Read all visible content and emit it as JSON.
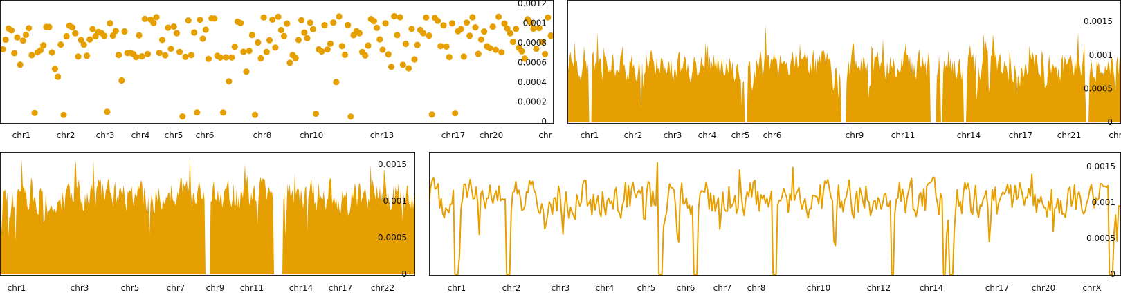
{
  "colors": {
    "series": "#E69F00",
    "frame": "#222222",
    "text": "#111111",
    "background": "#ffffff"
  },
  "chart_data": [
    {
      "id": "top-left",
      "type": "scatter",
      "ylim": [
        0,
        0.0012
      ],
      "y_ticks": [
        "0",
        "0.0002",
        "0.0004",
        "0.0006",
        "0.0008",
        "0.001",
        "0.0012"
      ],
      "x_labels": [
        "chr1",
        "chr2",
        "chr3",
        "chr4",
        "chr5",
        "chr6",
        "chr8",
        "chr10",
        "chr13",
        "chr17",
        "chr20",
        "chr"
      ],
      "y_axis_side": "right",
      "grid": false
    },
    {
      "id": "top-right",
      "type": "area",
      "ylim": [
        0,
        0.0018
      ],
      "y_ticks": [
        "0",
        "0.0005",
        "0.001",
        "0.0015"
      ],
      "x_labels": [
        "chr1",
        "chr2",
        "chr3",
        "chr4",
        "chr5",
        "chr6",
        "chr9",
        "chr11",
        "chr14",
        "chr17",
        "chr21",
        "chr"
      ],
      "y_axis_side": "right",
      "grid": false
    },
    {
      "id": "bottom-left",
      "type": "area",
      "ylim": [
        0,
        0.00165
      ],
      "y_ticks": [
        "0",
        "0.0005",
        "0.001",
        "0.0015"
      ],
      "x_labels": [
        "chr1",
        "chr3",
        "chr5",
        "chr7",
        "chr9",
        "chr11",
        "chr14",
        "chr17",
        "chr22"
      ],
      "y_axis_side": "right",
      "grid": false
    },
    {
      "id": "bottom-right",
      "type": "line",
      "ylim": [
        0,
        0.00168
      ],
      "y_ticks": [
        "0",
        "0.0005",
        "0.001",
        "0.0015"
      ],
      "x_labels": [
        "chr1",
        "chr2",
        "chr3",
        "chr4",
        "chr5",
        "chr6",
        "chr7",
        "chr8",
        "chr10",
        "chr12",
        "chr14",
        "chr17",
        "chr20",
        "chrX"
      ],
      "y_axis_side": "right",
      "grid": false
    }
  ]
}
